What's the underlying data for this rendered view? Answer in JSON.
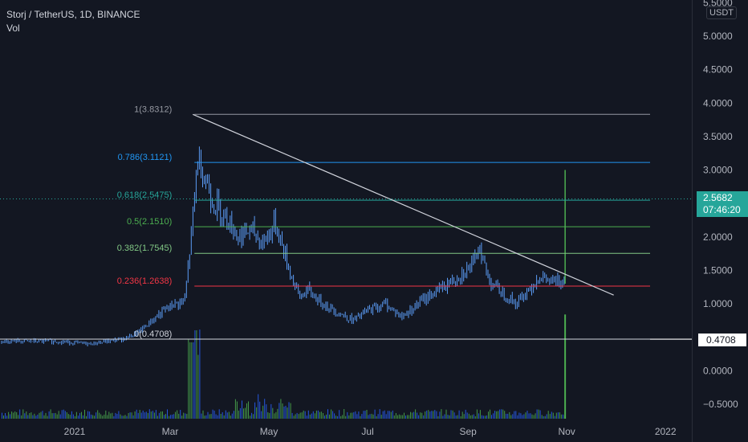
{
  "legend": {
    "symbol": "Storj / TetherUS, 1D, BINANCE",
    "volume": "Vol"
  },
  "currency_button": "USDT",
  "price_tag": {
    "price": "2.5682",
    "countdown": "07:46:20"
  },
  "line_tag": "0.4708",
  "colors": {
    "background": "#131722",
    "candle": "#5b9cf6",
    "volume": "#4caf50",
    "trendline": "#d1d4dc",
    "fib_1": "#9598a1",
    "fib_0786": "#2196f3",
    "fib_0618": "#26a69a",
    "fib_05": "#4caf50",
    "fib_0382": "#81c784",
    "fib_0236": "#f23645",
    "fib_0": "#d1d4dc"
  },
  "chart_data": {
    "type": "line",
    "title": "Storj / TetherUS, 1D, BINANCE",
    "xlabel": "",
    "ylabel": "",
    "x_ticks": [
      "2021",
      "Mar",
      "May",
      "Jul",
      "Sep",
      "Nov",
      "2022"
    ],
    "y_ticks": [
      "5.5000",
      "5.0000",
      "4.5000",
      "4.0000",
      "3.5000",
      "3.0000",
      "2.5000",
      "2.0000",
      "1.5000",
      "1.0000",
      "0.5000",
      "0.0000",
      "−0.5000"
    ],
    "ylim": [
      -0.65,
      5.5
    ],
    "grid": false,
    "series": [
      {
        "x": [
          "2020-12-20",
          "2021-01-10",
          "2021-02-01",
          "2021-02-10",
          "2021-02-20",
          "2021-03-01",
          "2021-03-10",
          "2021-03-14",
          "2021-03-18",
          "2021-03-21",
          "2021-03-28",
          "2021-04-05",
          "2021-04-12",
          "2021-04-20",
          "2021-04-27",
          "2021-05-05",
          "2021-05-10",
          "2021-05-15",
          "2021-05-20",
          "2021-05-25",
          "2021-06-01",
          "2021-06-10",
          "2021-06-22",
          "2021-07-01",
          "2021-07-12",
          "2021-07-22",
          "2021-08-01",
          "2021-08-10",
          "2021-08-20",
          "2021-08-28",
          "2021-09-05",
          "2021-09-08",
          "2021-09-13",
          "2021-09-20",
          "2021-10-01",
          "2021-10-08",
          "2021-10-15",
          "2021-10-25",
          "2021-10-31"
        ],
        "values": [
          0.44,
          0.4,
          0.48,
          0.58,
          0.8,
          0.96,
          1.05,
          2.0,
          3.2,
          3.0,
          2.5,
          2.3,
          2.0,
          2.1,
          1.9,
          2.2,
          1.8,
          1.4,
          1.1,
          1.2,
          1.05,
          0.9,
          0.75,
          0.9,
          1.0,
          0.8,
          1.0,
          1.15,
          1.3,
          1.45,
          1.6,
          1.9,
          1.4,
          1.2,
          1.0,
          1.2,
          1.4,
          1.3,
          1.4
        ]
      }
    ],
    "volume": {
      "name": "Vol",
      "x": [
        "2021-03-12",
        "2021-03-14",
        "2021-03-16",
        "2021-03-18",
        "2021-04-15",
        "2021-05-05",
        "2021-06-01",
        "2021-10-31"
      ],
      "values": [
        0.15,
        0.65,
        0.72,
        0.3,
        0.1,
        0.2,
        0.15,
        0.9
      ],
      "note_relative": true
    },
    "fibonacci": [
      {
        "label": "1(3.8312)",
        "level": 3.8312,
        "color_key": "fib_1"
      },
      {
        "label": "0.786(3.1121)",
        "level": 3.1121,
        "color_key": "fib_0786"
      },
      {
        "label": "0.618(2.5475)",
        "level": 2.5475,
        "color_key": "fib_0618"
      },
      {
        "label": "0.5(2.1510)",
        "level": 2.151,
        "color_key": "fib_05"
      },
      {
        "label": "0.382(1.7545)",
        "level": 1.7545,
        "color_key": "fib_0382"
      },
      {
        "label": "0.236(1.2638)",
        "level": 1.2638,
        "color_key": "fib_0236"
      },
      {
        "label": "0(0.4708)",
        "level": 0.4708,
        "color_key": "fib_0"
      }
    ],
    "trendline": {
      "from": [
        "2021-03-15",
        3.8312
      ],
      "to": [
        "2021-11-30",
        1.13
      ]
    },
    "horizontal_line": 0.4708,
    "last_price": 2.5682
  }
}
